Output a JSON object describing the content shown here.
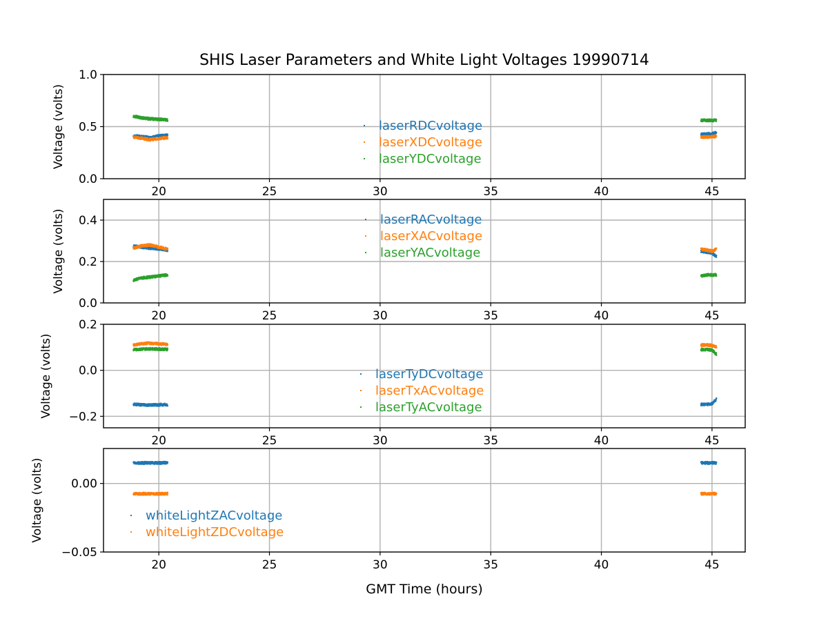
{
  "figure": {
    "title": "SHIS Laser Parameters and White Light Voltages 19990714",
    "xlabel": "GMT Time (hours)"
  },
  "colors": {
    "c0": "#1f77b4",
    "c1": "#ff7f0e",
    "c2": "#2ca02c",
    "grid": "#b0b0b0"
  },
  "chart_data": [
    {
      "type": "scatter",
      "ylabel": "Voltage (volts)",
      "xlim": [
        17.5,
        46.5
      ],
      "ylim": [
        0.0,
        1.0
      ],
      "xticks": [
        20,
        25,
        30,
        35,
        40,
        45
      ],
      "xtick_labels": [
        "20",
        "25",
        "30",
        "35",
        "40",
        "45"
      ],
      "yticks": [
        0.0,
        0.5,
        1.0
      ],
      "ytick_labels": [
        "0.0",
        "0.5",
        "1.0"
      ],
      "grid": true,
      "legend_position": "center",
      "series": [
        {
          "name": "laserRDCvoltage",
          "segments": [
            {
              "x": [
                18.85,
                19.2,
                19.6,
                20.0,
                20.4
              ],
              "y": [
                0.41,
                0.405,
                0.395,
                0.41,
                0.42
              ]
            },
            {
              "x": [
                44.5,
                44.8,
                45.1,
                45.2
              ],
              "y": [
                0.425,
                0.43,
                0.435,
                0.45
              ]
            }
          ]
        },
        {
          "name": "laserXDCvoltage",
          "segments": [
            {
              "x": [
                18.85,
                19.2,
                19.6,
                20.0,
                20.4
              ],
              "y": [
                0.4,
                0.39,
                0.375,
                0.385,
                0.395
              ]
            },
            {
              "x": [
                44.5,
                44.8,
                45.1,
                45.2
              ],
              "y": [
                0.4,
                0.4,
                0.405,
                0.41
              ]
            }
          ]
        },
        {
          "name": "laserYDCvoltage",
          "segments": [
            {
              "x": [
                18.85,
                19.2,
                19.6,
                20.0,
                20.4
              ],
              "y": [
                0.6,
                0.585,
                0.575,
                0.57,
                0.565
              ]
            },
            {
              "x": [
                44.5,
                44.8,
                45.1,
                45.2
              ],
              "y": [
                0.56,
                0.56,
                0.56,
                0.56
              ]
            }
          ]
        }
      ]
    },
    {
      "type": "scatter",
      "ylabel": "Voltage (volts)",
      "xlim": [
        17.5,
        46.5
      ],
      "ylim": [
        0.0,
        0.5
      ],
      "xticks": [
        20,
        25,
        30,
        35,
        40,
        45
      ],
      "xtick_labels": [
        "20",
        "25",
        "30",
        "35",
        "40",
        "45"
      ],
      "yticks": [
        0.0,
        0.2,
        0.4
      ],
      "ytick_labels": [
        "0.0",
        "0.2",
        "0.4"
      ],
      "grid": true,
      "legend_position": "upper center",
      "series": [
        {
          "name": "laserRACvoltage",
          "segments": [
            {
              "x": [
                18.85,
                19.2,
                19.6,
                20.0,
                20.4
              ],
              "y": [
                0.275,
                0.27,
                0.265,
                0.26,
                0.255
              ]
            },
            {
              "x": [
                44.5,
                44.8,
                45.0,
                45.2
              ],
              "y": [
                0.25,
                0.245,
                0.24,
                0.225
              ]
            }
          ]
        },
        {
          "name": "laserXACvoltage",
          "segments": [
            {
              "x": [
                18.85,
                19.2,
                19.6,
                20.0,
                20.4
              ],
              "y": [
                0.265,
                0.275,
                0.28,
                0.27,
                0.26
              ]
            },
            {
              "x": [
                44.5,
                44.8,
                45.0,
                45.2
              ],
              "y": [
                0.26,
                0.255,
                0.25,
                0.26
              ]
            }
          ]
        },
        {
          "name": "laserYACvoltage",
          "segments": [
            {
              "x": [
                18.85,
                19.2,
                19.6,
                20.0,
                20.4
              ],
              "y": [
                0.11,
                0.12,
                0.125,
                0.13,
                0.135
              ]
            },
            {
              "x": [
                44.5,
                44.8,
                45.0,
                45.2
              ],
              "y": [
                0.13,
                0.135,
                0.135,
                0.135
              ]
            }
          ]
        }
      ]
    },
    {
      "type": "scatter",
      "ylabel": "Voltage (volts)",
      "xlim": [
        17.5,
        46.5
      ],
      "ylim": [
        -0.25,
        0.2
      ],
      "xticks": [
        20,
        25,
        30,
        35,
        40,
        45
      ],
      "xtick_labels": [
        "20",
        "25",
        "30",
        "35",
        "40",
        "45"
      ],
      "yticks": [
        -0.2,
        0.0,
        0.2
      ],
      "ytick_labels": [
        "−0.2",
        "0.0",
        "0.2"
      ],
      "grid": true,
      "legend_position": "center",
      "series": [
        {
          "name": "laserTyDCvoltage",
          "segments": [
            {
              "x": [
                18.85,
                19.2,
                19.6,
                20.0,
                20.4
              ],
              "y": [
                -0.148,
                -0.15,
                -0.151,
                -0.15,
                -0.149
              ]
            },
            {
              "x": [
                44.5,
                44.8,
                45.0,
                45.2
              ],
              "y": [
                -0.148,
                -0.148,
                -0.145,
                -0.125
              ]
            }
          ]
        },
        {
          "name": "laserTxACvoltage",
          "segments": [
            {
              "x": [
                18.85,
                19.2,
                19.6,
                20.0,
                20.4
              ],
              "y": [
                0.11,
                0.115,
                0.118,
                0.115,
                0.113
              ]
            },
            {
              "x": [
                44.5,
                44.8,
                45.0,
                45.2
              ],
              "y": [
                0.11,
                0.11,
                0.108,
                0.1
              ]
            }
          ]
        },
        {
          "name": "laserTyACvoltage",
          "segments": [
            {
              "x": [
                18.85,
                19.2,
                19.6,
                20.0,
                20.4
              ],
              "y": [
                0.09,
                0.092,
                0.093,
                0.092,
                0.091
              ]
            },
            {
              "x": [
                44.5,
                44.8,
                45.0,
                45.2
              ],
              "y": [
                0.09,
                0.09,
                0.088,
                0.07
              ]
            }
          ]
        }
      ]
    },
    {
      "type": "scatter",
      "ylabel": "Voltage (volts)",
      "xlim": [
        17.5,
        46.5
      ],
      "ylim": [
        -0.05,
        0.0255
      ],
      "xticks": [
        20,
        25,
        30,
        35,
        40,
        45
      ],
      "xtick_labels": [
        "20",
        "25",
        "30",
        "35",
        "40",
        "45"
      ],
      "yticks": [
        -0.05,
        0.0
      ],
      "ytick_labels": [
        "−0.05",
        "0.00"
      ],
      "grid": true,
      "legend_position": "lower left",
      "series": [
        {
          "name": "whiteLightZACvoltage",
          "segments": [
            {
              "x": [
                18.85,
                19.2,
                19.6,
                20.0,
                20.4
              ],
              "y": [
                0.015,
                0.015,
                0.015,
                0.015,
                0.015
              ]
            },
            {
              "x": [
                44.5,
                44.8,
                45.0,
                45.2
              ],
              "y": [
                0.015,
                0.015,
                0.015,
                0.015
              ]
            }
          ]
        },
        {
          "name": "whiteLightZDCvoltage",
          "segments": [
            {
              "x": [
                18.85,
                19.2,
                19.6,
                20.0,
                20.4
              ],
              "y": [
                -0.0075,
                -0.0075,
                -0.0075,
                -0.0075,
                -0.0075
              ]
            },
            {
              "x": [
                44.5,
                44.8,
                45.0,
                45.2
              ],
              "y": [
                -0.0075,
                -0.0075,
                -0.0075,
                -0.0075
              ]
            }
          ]
        }
      ]
    }
  ]
}
